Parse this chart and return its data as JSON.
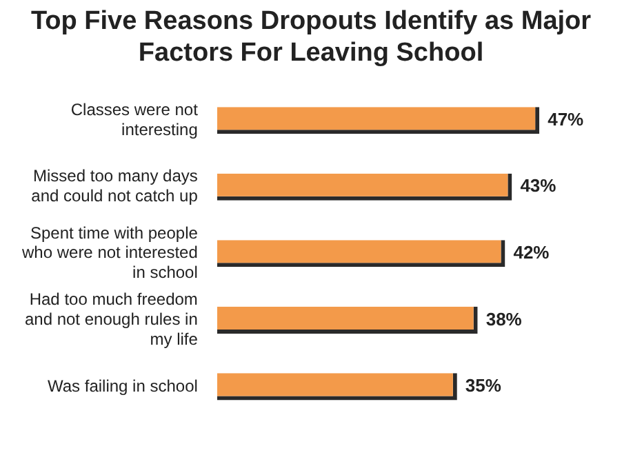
{
  "chart_data": {
    "type": "bar",
    "orientation": "horizontal",
    "title": "Top Five Reasons Dropouts Identify as Major Factors For Leaving School",
    "categories": [
      "Classes were not interesting",
      "Missed too many days and could not catch up",
      "Spent time with people who were not interested in school",
      "Had too much freedom and not enough rules in my life",
      "Was failing in school"
    ],
    "values": [
      47,
      43,
      42,
      38,
      35
    ],
    "value_labels": [
      "47%",
      "43%",
      "42%",
      "38%",
      "35%"
    ],
    "color": "#f39a4a"
  }
}
